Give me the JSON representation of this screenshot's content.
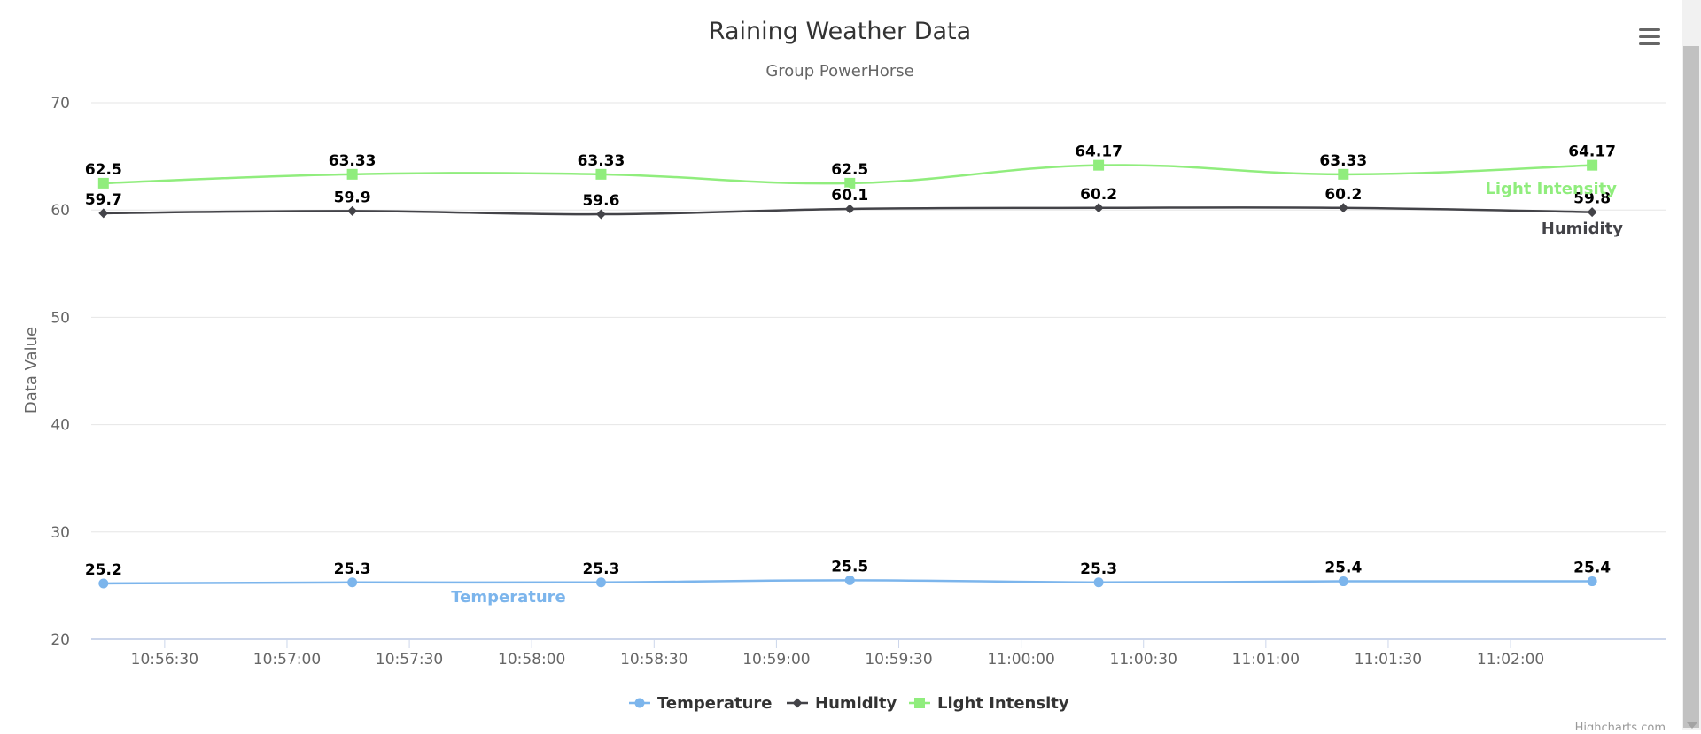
{
  "title": "Raining Weather Data",
  "subtitle": "Group PowerHorse",
  "credits": "Highcharts.com",
  "menu_icon": "hamburger-menu-icon",
  "chart_data": {
    "type": "line",
    "title": "Raining Weather Data",
    "subtitle": "Group PowerHorse",
    "ylabel": "Data Value",
    "xlabel": "",
    "ylim": [
      20,
      70
    ],
    "yticks": [
      20,
      30,
      40,
      50,
      60,
      70
    ],
    "x_type": "datetime",
    "xlim": [
      "10:56:12",
      "11:02:38"
    ],
    "xticks": [
      "10:56:30",
      "10:57:00",
      "10:57:30",
      "10:58:00",
      "10:58:30",
      "10:59:00",
      "10:59:30",
      "11:00:00",
      "11:00:30",
      "11:01:00",
      "11:01:30",
      "11:02:00"
    ],
    "x": [
      "10:56:15",
      "10:57:16",
      "10:58:17",
      "10:59:18",
      "11:00:19",
      "11:01:19",
      "11:02:20"
    ],
    "grid": true,
    "legend_position": "bottom-center",
    "series": [
      {
        "name": "Temperature",
        "values": [
          25.2,
          25.3,
          25.3,
          25.5,
          25.3,
          25.4,
          25.4
        ],
        "color": "#7cb5ec",
        "marker": "circle",
        "label_index": 1
      },
      {
        "name": "Humidity",
        "values": [
          59.7,
          59.9,
          59.6,
          60.1,
          60.2,
          60.2,
          59.8
        ],
        "color": "#434348",
        "marker": "diamond",
        "label_index": 6
      },
      {
        "name": "Light Intensity",
        "values": [
          62.5,
          63.33,
          63.33,
          62.5,
          64.17,
          63.33,
          64.17
        ],
        "color": "#90ed7d",
        "marker": "square",
        "label_index": 6
      }
    ]
  }
}
